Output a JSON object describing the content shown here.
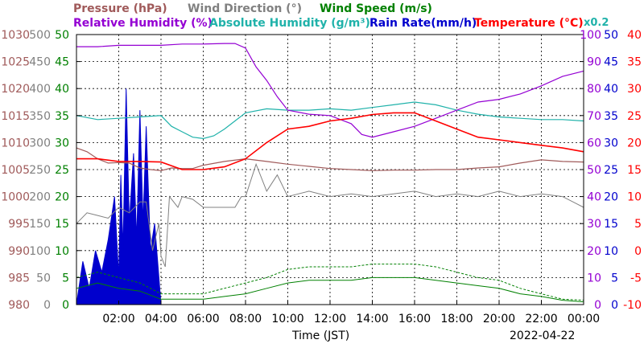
{
  "chart_data": {
    "type": "line",
    "date": "2022-04-22",
    "xlabel": "Time (JST)",
    "x_range": [
      "00:00",
      "24:00"
    ],
    "x_ticks": [
      "02:00",
      "04:00",
      "06:00",
      "08:00",
      "10:00",
      "12:00",
      "14:00",
      "16:00",
      "18:00",
      "20:00",
      "22:00",
      "00:00"
    ],
    "grid": true,
    "legend": [
      {
        "key": "pressure",
        "text": "Pressure (hPa)",
        "color": "#a05a5a"
      },
      {
        "key": "wind_dir",
        "text": "Wind Direction (°)",
        "color": "#808080"
      },
      {
        "key": "wind_speed",
        "text": "Wind Speed (m/s)",
        "color": "#008000"
      },
      {
        "key": "rh",
        "text": "Relative Humidity (%)",
        "color": "#9400d3"
      },
      {
        "key": "ah",
        "text": "Absolute Humidity (g/m³)",
        "color": "#20b2aa"
      },
      {
        "key": "rain",
        "text": "Rain Rate(mm/h)",
        "color": "#0000cd"
      },
      {
        "key": "temp",
        "text": "Temperature (°C)",
        "color": "#ff0000"
      }
    ],
    "ah_scale_note": "x0.2",
    "axes": {
      "pressure": {
        "side": "left",
        "color": "#a05a5a",
        "ticks": [
          "980",
          "985",
          "990",
          "995",
          "1000",
          "1005",
          "1010",
          "1015",
          "1020",
          "1025",
          "1030"
        ],
        "range": [
          980,
          1030
        ]
      },
      "wind_dir": {
        "side": "left",
        "color": "#808080",
        "ticks": [
          "0",
          "50",
          "100",
          "150",
          "200",
          "250",
          "300",
          "350",
          "400",
          "450",
          "500"
        ],
        "range": [
          0,
          500
        ]
      },
      "wind_speed": {
        "side": "left",
        "color": "#008000",
        "ticks": [
          "0",
          "5",
          "10",
          "15",
          "20",
          "25",
          "30",
          "35",
          "40",
          "45",
          "50"
        ],
        "range": [
          0,
          50
        ]
      },
      "rh": {
        "side": "right",
        "color": "#9400d3",
        "ticks": [
          "0",
          "10",
          "20",
          "30",
          "40",
          "50",
          "60",
          "70",
          "80",
          "90",
          "100"
        ],
        "range": [
          0,
          100
        ]
      },
      "rain": {
        "side": "right",
        "color": "#0000cd",
        "ticks": [
          "0",
          "5",
          "10",
          "15",
          "20",
          "25",
          "30",
          "35",
          "40",
          "45",
          "50"
        ],
        "range": [
          0,
          50
        ]
      },
      "temp": {
        "side": "right",
        "color": "#ff0000",
        "ticks": [
          "-10",
          "-5",
          "0",
          "5",
          "10",
          "15",
          "20",
          "25",
          "30",
          "35",
          "40"
        ],
        "range": [
          -10,
          40
        ]
      }
    },
    "series": {
      "pressure": {
        "name": "Pressure (hPa)",
        "color": "#a05a5a",
        "points": [
          [
            0,
            1009
          ],
          [
            0.5,
            1008.3
          ],
          [
            1,
            1007
          ],
          [
            1.5,
            1006.2
          ],
          [
            2,
            1006.3
          ],
          [
            2.5,
            1006.2
          ],
          [
            3,
            1005.3
          ],
          [
            3.5,
            1005
          ],
          [
            4,
            1004.8
          ],
          [
            4.5,
            1005.3
          ],
          [
            5,
            1005.2
          ],
          [
            5.5,
            1005.2
          ],
          [
            6,
            1005.8
          ],
          [
            7,
            1006.5
          ],
          [
            8,
            1007
          ],
          [
            9,
            1006.5
          ],
          [
            10,
            1006
          ],
          [
            11,
            1005.6
          ],
          [
            12,
            1005.2
          ],
          [
            13,
            1005
          ],
          [
            14,
            1004.8
          ],
          [
            15,
            1004.9
          ],
          [
            16,
            1004.9
          ],
          [
            17,
            1005
          ],
          [
            18,
            1005
          ],
          [
            19,
            1005.3
          ],
          [
            20,
            1005.5
          ],
          [
            21,
            1006.2
          ],
          [
            22,
            1006.8
          ],
          [
            23,
            1006.5
          ],
          [
            24,
            1006.4
          ]
        ]
      },
      "temperature": {
        "name": "Temperature (°C)",
        "color": "#ff0000",
        "points": [
          [
            0,
            17
          ],
          [
            1,
            17
          ],
          [
            2,
            16.5
          ],
          [
            3,
            16.5
          ],
          [
            4,
            16.4
          ],
          [
            5,
            15
          ],
          [
            6,
            15
          ],
          [
            7,
            15.5
          ],
          [
            8,
            17
          ],
          [
            9,
            20
          ],
          [
            10,
            22.5
          ],
          [
            11,
            23
          ],
          [
            12,
            24
          ],
          [
            13,
            24.5
          ],
          [
            14,
            25.2
          ],
          [
            15,
            25.5
          ],
          [
            16,
            25.5
          ],
          [
            17,
            24
          ],
          [
            18,
            22.5
          ],
          [
            19,
            21
          ],
          [
            20,
            20.5
          ],
          [
            21,
            20
          ],
          [
            22,
            19.5
          ],
          [
            23,
            19
          ],
          [
            24,
            18.3
          ]
        ]
      },
      "relative_humidity": {
        "name": "Relative Humidity (%)",
        "color": "#9400d3",
        "points": [
          [
            0,
            95.5
          ],
          [
            1,
            95.5
          ],
          [
            2,
            96
          ],
          [
            3,
            96
          ],
          [
            4,
            96
          ],
          [
            5,
            96.5
          ],
          [
            6,
            96.5
          ],
          [
            7,
            96.7
          ],
          [
            7.5,
            96.7
          ],
          [
            8,
            95
          ],
          [
            8.5,
            88
          ],
          [
            9,
            83
          ],
          [
            9.5,
            77
          ],
          [
            10,
            72
          ],
          [
            11,
            70.5
          ],
          [
            12,
            70
          ],
          [
            13,
            67
          ],
          [
            13.5,
            63
          ],
          [
            14,
            62
          ],
          [
            15,
            64
          ],
          [
            16,
            66
          ],
          [
            17,
            69
          ],
          [
            18,
            72
          ],
          [
            19,
            75
          ],
          [
            20,
            76
          ],
          [
            21,
            78
          ],
          [
            22,
            81
          ],
          [
            23,
            84.5
          ],
          [
            24,
            86.5
          ]
        ]
      },
      "absolute_humidity": {
        "name": "Absolute Humidity (g/m³)",
        "color": "#20b2aa",
        "points": [
          [
            0,
            70
          ],
          [
            1,
            68.5
          ],
          [
            2,
            69
          ],
          [
            3,
            69.5
          ],
          [
            4,
            70
          ],
          [
            4.5,
            66
          ],
          [
            5,
            64
          ],
          [
            5.5,
            62
          ],
          [
            6,
            61.5
          ],
          [
            6.5,
            62.5
          ],
          [
            7,
            65
          ],
          [
            7.5,
            68
          ],
          [
            8,
            71
          ],
          [
            9,
            72.5
          ],
          [
            10,
            72
          ],
          [
            11,
            72
          ],
          [
            12,
            72.5
          ],
          [
            13,
            72
          ],
          [
            14,
            73
          ],
          [
            15,
            74
          ],
          [
            16,
            75
          ],
          [
            17,
            74
          ],
          [
            18,
            72
          ],
          [
            19,
            70.5
          ],
          [
            20,
            69.5
          ],
          [
            21,
            69
          ],
          [
            22,
            68.5
          ],
          [
            23,
            68.5
          ],
          [
            24,
            68
          ]
        ]
      },
      "wind_direction": {
        "name": "Wind Direction (°)",
        "color": "#808080",
        "points": [
          [
            0,
            150
          ],
          [
            0.5,
            170
          ],
          [
            1,
            165
          ],
          [
            1.5,
            160
          ],
          [
            2,
            180
          ],
          [
            2.5,
            170
          ],
          [
            3,
            190
          ],
          [
            3.3,
            190
          ],
          [
            3.6,
            100
          ],
          [
            3.9,
            150
          ],
          [
            4,
            90
          ],
          [
            4.2,
            70
          ],
          [
            4.4,
            200
          ],
          [
            4.6,
            190
          ],
          [
            4.8,
            180
          ],
          [
            5,
            200
          ],
          [
            5.5,
            195
          ],
          [
            6,
            180
          ],
          [
            7,
            180
          ],
          [
            7.5,
            180
          ],
          [
            7.8,
            200
          ],
          [
            8,
            200
          ],
          [
            8.5,
            260
          ],
          [
            9,
            210
          ],
          [
            9.5,
            240
          ],
          [
            10,
            200
          ],
          [
            11,
            210
          ],
          [
            12,
            200
          ],
          [
            13,
            205
          ],
          [
            14,
            200
          ],
          [
            15,
            205
          ],
          [
            16,
            210
          ],
          [
            17,
            200
          ],
          [
            18,
            205
          ],
          [
            19,
            200
          ],
          [
            20,
            210
          ],
          [
            21,
            200
          ],
          [
            22,
            205
          ],
          [
            23,
            200
          ],
          [
            24,
            180
          ]
        ]
      },
      "wind_speed": {
        "name": "Wind Speed (m/s)",
        "color": "#008000",
        "points": [
          [
            0,
            3
          ],
          [
            1,
            4
          ],
          [
            2,
            3
          ],
          [
            3,
            2.5
          ],
          [
            4,
            1
          ],
          [
            5,
            1
          ],
          [
            6,
            1
          ],
          [
            7,
            1.5
          ],
          [
            8,
            2
          ],
          [
            9,
            3
          ],
          [
            10,
            4
          ],
          [
            11,
            4.5
          ],
          [
            12,
            4.5
          ],
          [
            13,
            4.5
          ],
          [
            14,
            5
          ],
          [
            15,
            5
          ],
          [
            16,
            5
          ],
          [
            17,
            4.5
          ],
          [
            18,
            4
          ],
          [
            19,
            3.5
          ],
          [
            20,
            3
          ],
          [
            21,
            2
          ],
          [
            22,
            1.5
          ],
          [
            23,
            0.8
          ],
          [
            24,
            0.5
          ]
        ],
        "gust_points": [
          [
            0,
            5
          ],
          [
            1,
            6
          ],
          [
            2,
            5
          ],
          [
            3,
            4
          ],
          [
            4,
            2
          ],
          [
            5,
            2
          ],
          [
            6,
            2
          ],
          [
            7,
            3
          ],
          [
            8,
            4
          ],
          [
            9,
            5
          ],
          [
            10,
            6.5
          ],
          [
            11,
            7
          ],
          [
            12,
            7
          ],
          [
            13,
            7
          ],
          [
            14,
            7.5
          ],
          [
            15,
            7.5
          ],
          [
            16,
            7.5
          ],
          [
            17,
            7
          ],
          [
            18,
            6
          ],
          [
            19,
            5
          ],
          [
            20,
            4.5
          ],
          [
            21,
            3
          ],
          [
            22,
            2
          ],
          [
            23,
            1
          ],
          [
            24,
            0.8
          ]
        ]
      },
      "rain_rate": {
        "name": "Rain Rate(mm/h)",
        "color": "#0000cd",
        "points": [
          [
            0,
            0
          ],
          [
            0.3,
            8
          ],
          [
            0.6,
            3
          ],
          [
            0.9,
            10
          ],
          [
            1.2,
            6
          ],
          [
            1.5,
            12
          ],
          [
            1.8,
            20
          ],
          [
            2.0,
            5
          ],
          [
            2.1,
            24
          ],
          [
            2.2,
            10
          ],
          [
            2.35,
            40
          ],
          [
            2.5,
            15
          ],
          [
            2.7,
            28
          ],
          [
            2.85,
            12
          ],
          [
            3.0,
            36
          ],
          [
            3.15,
            15
          ],
          [
            3.3,
            33
          ],
          [
            3.5,
            10
          ],
          [
            3.7,
            15
          ],
          [
            3.9,
            5
          ],
          [
            4.0,
            0
          ],
          [
            24,
            0
          ]
        ]
      }
    }
  }
}
